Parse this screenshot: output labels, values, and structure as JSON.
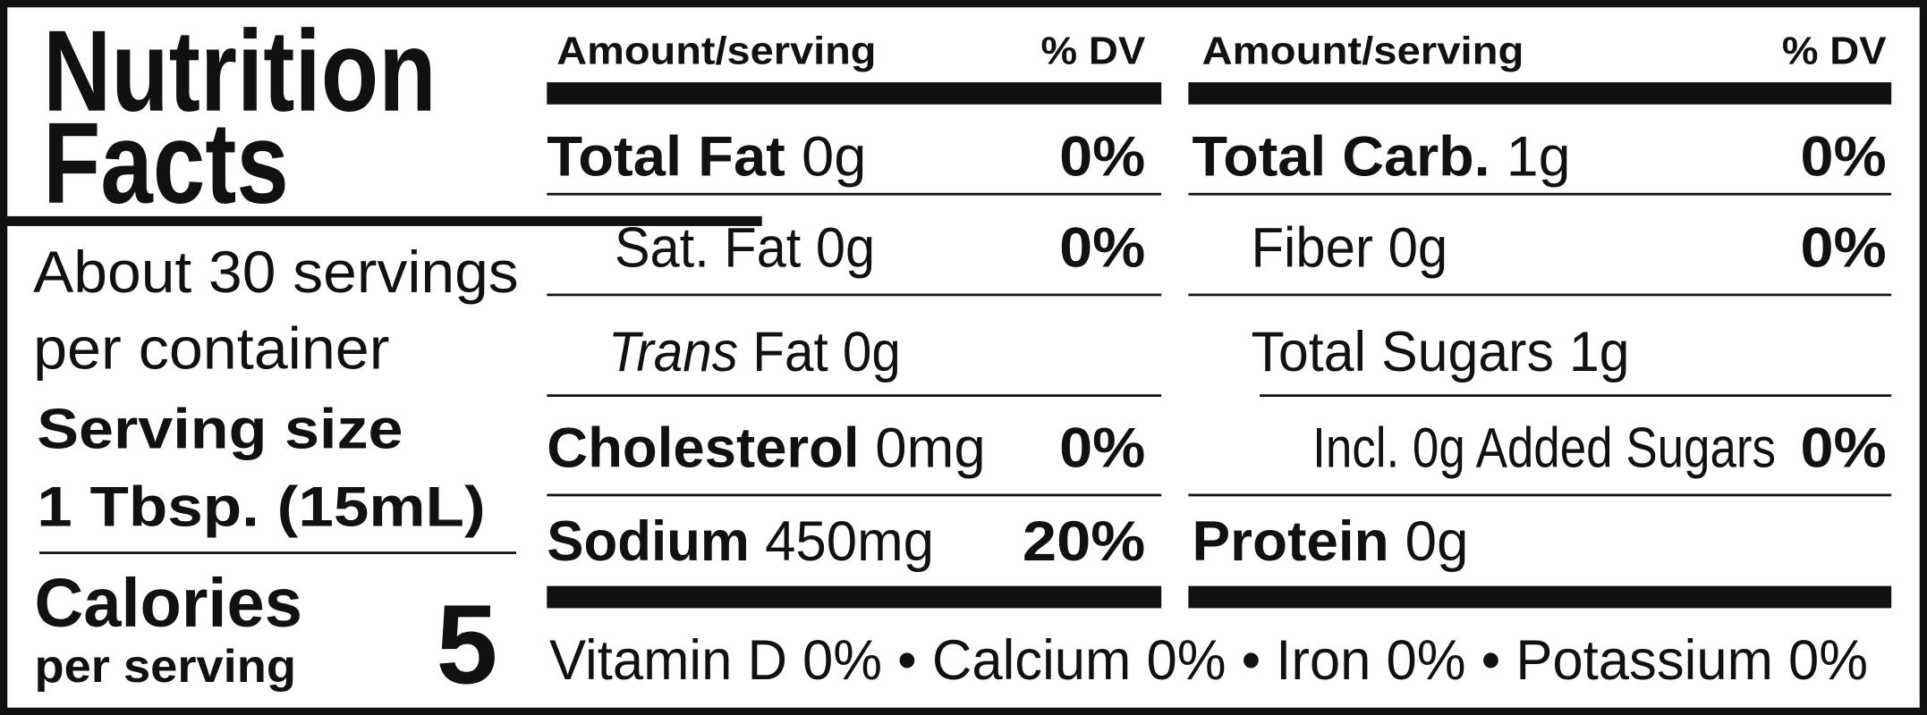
{
  "label": {
    "title_lines": [
      "Nutrition",
      "Facts"
    ],
    "servings_lines": [
      "About 30 servings",
      "per container"
    ],
    "serving_size": {
      "label": "Serving size",
      "value": "1 Tbsp. (15mL)"
    },
    "calories": {
      "label": "Calories",
      "sublabel": "per serving",
      "value": "5"
    },
    "columns": [
      {
        "header": {
          "amount": "Amount/serving",
          "dv": "% DV"
        },
        "rows": [
          {
            "name": "Total Fat",
            "amount": "0g",
            "dv": "0%"
          },
          {
            "name": "Sat. Fat",
            "amount": "0g",
            "dv": "0%"
          },
          {
            "name_italic": "Trans",
            "name": "Fat",
            "amount": "0g"
          },
          {
            "name": "Cholesterol",
            "amount": "0mg",
            "dv": "0%"
          },
          {
            "name": "Sodium",
            "amount": "450mg",
            "dv": "20%"
          }
        ]
      },
      {
        "header": {
          "amount": "Amount/serving",
          "dv": "% DV"
        },
        "rows": [
          {
            "name": "Total Carb.",
            "amount": "1g",
            "dv": "0%"
          },
          {
            "name": "Fiber",
            "amount": "0g",
            "dv": "0%"
          },
          {
            "name": "Total Sugars",
            "amount": "1g"
          },
          {
            "name": "Incl. 0g Added Sugars",
            "dv": "0%"
          },
          {
            "name": "Protein",
            "amount": "0g"
          }
        ]
      }
    ],
    "footer": "Vitamin D 0% • Calcium 0% • Iron 0% • Potassium 0%"
  }
}
